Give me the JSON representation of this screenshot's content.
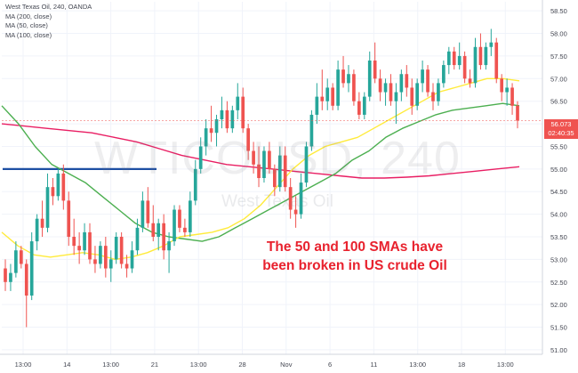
{
  "chart_data": {
    "type": "candlestick",
    "title": "West Texas Oil, 240, OANDA",
    "symbol": "WTICOUSD, 240",
    "instrument_name": "West Texas Oil",
    "legend": [
      "MA (200, close)",
      "MA (50, close)",
      "MA (100, close)"
    ],
    "ylim": [
      50.9,
      58.7
    ],
    "x_ticks": [
      "13:00",
      "14",
      "13:00",
      "21",
      "13:00",
      "28",
      "Nov",
      "6",
      "11",
      "13:00",
      "18",
      "13:00"
    ],
    "y_ticks": [
      "51.00",
      "51.50",
      "52.00",
      "52.50",
      "53.00",
      "53.50",
      "54.00",
      "54.50",
      "55.00",
      "55.50",
      "56.00",
      "56.50",
      "57.00",
      "57.50",
      "58.00",
      "58.50"
    ],
    "last_price": "56.073",
    "countdown": "02:40:35",
    "colors": {
      "up": "#26a69a",
      "down": "#ef5350",
      "ma200": "#e91e63",
      "ma50": "#4caf50",
      "ma100": "#ffeb3b",
      "level": "#1e4fa3"
    },
    "candles": [
      {
        "o": 52.8,
        "h": 53.0,
        "l": 52.3,
        "c": 52.5
      },
      {
        "o": 52.5,
        "h": 52.9,
        "l": 52.3,
        "c": 52.7
      },
      {
        "o": 52.7,
        "h": 53.4,
        "l": 52.6,
        "c": 53.2
      },
      {
        "o": 53.2,
        "h": 53.3,
        "l": 52.8,
        "c": 52.9
      },
      {
        "o": 52.9,
        "h": 53.0,
        "l": 51.5,
        "c": 52.2
      },
      {
        "o": 52.2,
        "h": 53.6,
        "l": 52.1,
        "c": 53.4
      },
      {
        "o": 53.4,
        "h": 54.0,
        "l": 53.2,
        "c": 53.9
      },
      {
        "o": 53.9,
        "h": 54.3,
        "l": 53.5,
        "c": 53.7
      },
      {
        "o": 53.7,
        "h": 54.9,
        "l": 53.6,
        "c": 54.6
      },
      {
        "o": 54.6,
        "h": 54.8,
        "l": 54.2,
        "c": 54.4
      },
      {
        "o": 54.4,
        "h": 55.0,
        "l": 54.3,
        "c": 54.9
      },
      {
        "o": 54.9,
        "h": 55.1,
        "l": 54.1,
        "c": 54.3
      },
      {
        "o": 54.3,
        "h": 54.5,
        "l": 53.3,
        "c": 53.5
      },
      {
        "o": 53.5,
        "h": 53.9,
        "l": 53.1,
        "c": 53.3
      },
      {
        "o": 53.3,
        "h": 53.6,
        "l": 52.9,
        "c": 53.2
      },
      {
        "o": 53.2,
        "h": 53.8,
        "l": 53.1,
        "c": 53.6
      },
      {
        "o": 53.6,
        "h": 53.8,
        "l": 52.9,
        "c": 53.0
      },
      {
        "o": 53.0,
        "h": 53.3,
        "l": 52.7,
        "c": 52.9
      },
      {
        "o": 52.9,
        "h": 53.4,
        "l": 52.8,
        "c": 53.3
      },
      {
        "o": 53.3,
        "h": 53.5,
        "l": 52.6,
        "c": 52.8
      },
      {
        "o": 52.8,
        "h": 53.2,
        "l": 52.5,
        "c": 53.0
      },
      {
        "o": 53.0,
        "h": 53.6,
        "l": 52.9,
        "c": 53.5
      },
      {
        "o": 53.5,
        "h": 53.6,
        "l": 52.8,
        "c": 52.9
      },
      {
        "o": 52.9,
        "h": 53.1,
        "l": 52.6,
        "c": 52.8
      },
      {
        "o": 52.8,
        "h": 53.4,
        "l": 52.7,
        "c": 53.2
      },
      {
        "o": 53.2,
        "h": 53.9,
        "l": 53.1,
        "c": 53.7
      },
      {
        "o": 53.7,
        "h": 54.5,
        "l": 53.6,
        "c": 54.3
      },
      {
        "o": 54.3,
        "h": 54.6,
        "l": 53.7,
        "c": 53.8
      },
      {
        "o": 53.8,
        "h": 54.2,
        "l": 53.4,
        "c": 53.5
      },
      {
        "o": 53.5,
        "h": 53.9,
        "l": 53.2,
        "c": 53.8
      },
      {
        "o": 53.8,
        "h": 54.0,
        "l": 53.0,
        "c": 53.2
      },
      {
        "o": 53.2,
        "h": 53.6,
        "l": 52.7,
        "c": 53.4
      },
      {
        "o": 53.4,
        "h": 54.2,
        "l": 53.3,
        "c": 54.1
      },
      {
        "o": 54.1,
        "h": 54.2,
        "l": 53.6,
        "c": 53.7
      },
      {
        "o": 53.7,
        "h": 53.9,
        "l": 53.5,
        "c": 53.6
      },
      {
        "o": 53.6,
        "h": 54.5,
        "l": 53.5,
        "c": 54.3
      },
      {
        "o": 54.3,
        "h": 55.2,
        "l": 54.2,
        "c": 55.0
      },
      {
        "o": 55.0,
        "h": 55.7,
        "l": 54.9,
        "c": 55.5
      },
      {
        "o": 55.5,
        "h": 56.1,
        "l": 55.3,
        "c": 55.9
      },
      {
        "o": 55.9,
        "h": 56.4,
        "l": 55.6,
        "c": 55.8
      },
      {
        "o": 55.8,
        "h": 56.2,
        "l": 55.5,
        "c": 56.1
      },
      {
        "o": 56.1,
        "h": 56.6,
        "l": 55.9,
        "c": 56.3
      },
      {
        "o": 56.3,
        "h": 56.5,
        "l": 55.8,
        "c": 55.9
      },
      {
        "o": 55.9,
        "h": 56.4,
        "l": 55.8,
        "c": 56.3
      },
      {
        "o": 56.3,
        "h": 56.9,
        "l": 56.1,
        "c": 56.6
      },
      {
        "o": 56.6,
        "h": 56.8,
        "l": 55.8,
        "c": 55.9
      },
      {
        "o": 55.9,
        "h": 56.0,
        "l": 55.2,
        "c": 55.4
      },
      {
        "o": 55.4,
        "h": 55.6,
        "l": 54.9,
        "c": 55.1
      },
      {
        "o": 55.1,
        "h": 55.5,
        "l": 54.6,
        "c": 54.8
      },
      {
        "o": 54.8,
        "h": 55.5,
        "l": 54.7,
        "c": 55.4
      },
      {
        "o": 55.4,
        "h": 55.6,
        "l": 54.9,
        "c": 55.0
      },
      {
        "o": 55.0,
        "h": 55.1,
        "l": 54.4,
        "c": 54.6
      },
      {
        "o": 54.6,
        "h": 55.5,
        "l": 54.5,
        "c": 55.3
      },
      {
        "o": 55.3,
        "h": 55.5,
        "l": 54.5,
        "c": 54.6
      },
      {
        "o": 54.6,
        "h": 54.8,
        "l": 53.9,
        "c": 54.1
      },
      {
        "o": 54.1,
        "h": 54.4,
        "l": 53.7,
        "c": 54.0
      },
      {
        "o": 54.0,
        "h": 54.9,
        "l": 53.9,
        "c": 54.7
      },
      {
        "o": 54.7,
        "h": 55.6,
        "l": 54.6,
        "c": 55.5
      },
      {
        "o": 55.5,
        "h": 56.3,
        "l": 55.4,
        "c": 56.2
      },
      {
        "o": 56.2,
        "h": 56.9,
        "l": 56.0,
        "c": 56.6
      },
      {
        "o": 56.6,
        "h": 57.2,
        "l": 56.3,
        "c": 56.5
      },
      {
        "o": 56.5,
        "h": 57.0,
        "l": 56.3,
        "c": 56.8
      },
      {
        "o": 56.8,
        "h": 56.9,
        "l": 56.3,
        "c": 56.4
      },
      {
        "o": 56.4,
        "h": 57.4,
        "l": 56.3,
        "c": 57.2
      },
      {
        "o": 57.2,
        "h": 57.5,
        "l": 56.8,
        "c": 56.9
      },
      {
        "o": 56.9,
        "h": 57.3,
        "l": 56.7,
        "c": 57.1
      },
      {
        "o": 57.1,
        "h": 57.2,
        "l": 56.4,
        "c": 56.5
      },
      {
        "o": 56.5,
        "h": 56.7,
        "l": 56.1,
        "c": 56.2
      },
      {
        "o": 56.2,
        "h": 56.7,
        "l": 56.1,
        "c": 56.6
      },
      {
        "o": 56.6,
        "h": 57.6,
        "l": 56.5,
        "c": 57.4
      },
      {
        "o": 57.4,
        "h": 57.8,
        "l": 56.9,
        "c": 57.0
      },
      {
        "o": 57.0,
        "h": 57.2,
        "l": 56.5,
        "c": 56.7
      },
      {
        "o": 56.7,
        "h": 57.0,
        "l": 56.4,
        "c": 56.9
      },
      {
        "o": 56.9,
        "h": 57.1,
        "l": 56.4,
        "c": 56.5
      },
      {
        "o": 56.5,
        "h": 56.9,
        "l": 56.0,
        "c": 56.7
      },
      {
        "o": 56.7,
        "h": 57.2,
        "l": 56.5,
        "c": 57.1
      },
      {
        "o": 57.1,
        "h": 57.3,
        "l": 56.6,
        "c": 56.8
      },
      {
        "o": 56.8,
        "h": 57.0,
        "l": 56.2,
        "c": 56.4
      },
      {
        "o": 56.4,
        "h": 57.0,
        "l": 56.3,
        "c": 56.9
      },
      {
        "o": 56.9,
        "h": 57.4,
        "l": 56.7,
        "c": 57.2
      },
      {
        "o": 57.2,
        "h": 57.3,
        "l": 56.6,
        "c": 56.7
      },
      {
        "o": 56.7,
        "h": 56.9,
        "l": 56.3,
        "c": 56.5
      },
      {
        "o": 56.5,
        "h": 57.0,
        "l": 56.4,
        "c": 56.9
      },
      {
        "o": 56.9,
        "h": 57.4,
        "l": 56.8,
        "c": 57.3
      },
      {
        "o": 57.3,
        "h": 57.7,
        "l": 57.1,
        "c": 57.6
      },
      {
        "o": 57.6,
        "h": 57.7,
        "l": 57.2,
        "c": 57.3
      },
      {
        "o": 57.3,
        "h": 57.8,
        "l": 57.2,
        "c": 57.5
      },
      {
        "o": 57.5,
        "h": 57.6,
        "l": 56.9,
        "c": 57.0
      },
      {
        "o": 57.0,
        "h": 57.2,
        "l": 56.8,
        "c": 56.9
      },
      {
        "o": 56.9,
        "h": 57.9,
        "l": 56.8,
        "c": 57.7
      },
      {
        "o": 57.7,
        "h": 58.0,
        "l": 57.2,
        "c": 57.3
      },
      {
        "o": 57.3,
        "h": 57.8,
        "l": 57.2,
        "c": 57.7
      },
      {
        "o": 57.7,
        "h": 58.1,
        "l": 57.5,
        "c": 57.8
      },
      {
        "o": 57.8,
        "h": 57.9,
        "l": 56.9,
        "c": 57.0
      },
      {
        "o": 57.0,
        "h": 57.1,
        "l": 56.5,
        "c": 56.7
      },
      {
        "o": 56.7,
        "h": 57.0,
        "l": 56.4,
        "c": 56.8
      },
      {
        "o": 56.8,
        "h": 56.9,
        "l": 56.2,
        "c": 56.4
      },
      {
        "o": 56.4,
        "h": 56.5,
        "l": 55.9,
        "c": 56.07
      }
    ],
    "ma200": [
      56.0,
      55.95,
      55.9,
      55.85,
      55.8,
      55.7,
      55.6,
      55.45,
      55.3,
      55.2,
      55.1,
      55.05,
      55.0,
      54.95,
      54.9,
      54.85,
      54.8,
      54.8,
      54.82,
      54.85,
      54.9,
      54.95,
      55.0,
      55.05
    ],
    "ma50": [
      56.4,
      56.0,
      55.5,
      55.1,
      54.9,
      54.7,
      54.4,
      54.1,
      53.8,
      53.6,
      53.5,
      53.45,
      53.4,
      53.5,
      53.7,
      53.9,
      54.1,
      54.3,
      54.5,
      54.7,
      54.9,
      55.2,
      55.4,
      55.7,
      55.9,
      56.05,
      56.2,
      56.3,
      56.35,
      56.4,
      56.45,
      56.4
    ],
    "ma100": [
      53.6,
      53.3,
      53.1,
      53.05,
      53.1,
      53.15,
      53.1,
      53.0,
      53.05,
      53.15,
      53.3,
      53.5,
      53.55,
      53.6,
      53.7,
      53.9,
      54.2,
      54.6,
      55.0,
      55.3,
      55.5,
      55.6,
      55.7,
      55.9,
      56.1,
      56.3,
      56.5,
      56.7,
      56.8,
      56.9,
      57.0,
      57.0,
      56.95
    ],
    "horizontal_level": 55.0,
    "annotation": "The 50 and 100 SMAs have\nbeen broken in US crude Oil"
  }
}
